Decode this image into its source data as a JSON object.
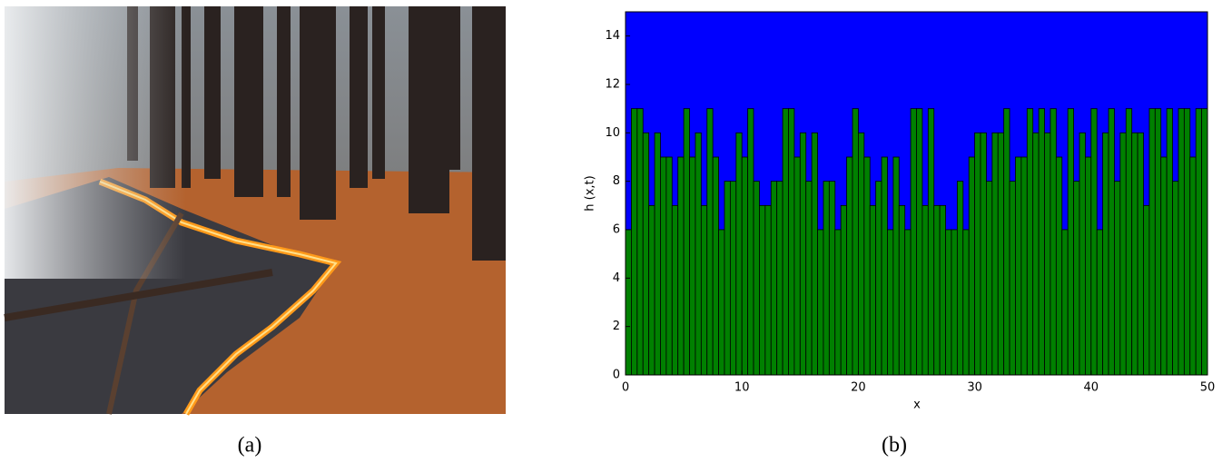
{
  "captions": [
    "(a)",
    "(b)"
  ],
  "chart_data": {
    "type": "histogram",
    "xlabel": "x",
    "ylabel": "h (x,t)",
    "background_color": "#0000ff",
    "color": "#008000",
    "bins": [
      0,
      0.5,
      1,
      1.5,
      2,
      2.5,
      3,
      3.5,
      4,
      4.5,
      5,
      5.5,
      6,
      6.5,
      7,
      7.5,
      8,
      8.5,
      9,
      9.5,
      10,
      10.5,
      11,
      11.5,
      12,
      12.5,
      13,
      13.5,
      14,
      14.5,
      15,
      15.5,
      16,
      16.5,
      17,
      17.5,
      18,
      18.5,
      19,
      19.5,
      20,
      20.5,
      21,
      21.5,
      22,
      22.5,
      23,
      23.5,
      24,
      24.5,
      25,
      25.5,
      26,
      26.5,
      27,
      27.5,
      28,
      28.5,
      29,
      29.5,
      30,
      30.5,
      31,
      31.5,
      32,
      32.5,
      33,
      33.5,
      34,
      34.5,
      35,
      35.5,
      36,
      36.5,
      37,
      37.5,
      38,
      38.5,
      39,
      39.5,
      40,
      40.5,
      41,
      41.5,
      42,
      42.5,
      43,
      43.5,
      44,
      44.5,
      45,
      45.5,
      46,
      46.5,
      47,
      47.5,
      48,
      48.5,
      49,
      49.5,
      50
    ],
    "values": [
      6,
      11,
      11,
      10,
      7,
      10,
      9,
      9,
      7,
      9,
      11,
      9,
      10,
      7,
      11,
      9,
      6,
      8,
      8,
      10,
      9,
      11,
      8,
      7,
      7,
      8,
      8,
      11,
      11,
      9,
      10,
      8,
      10,
      6,
      8,
      8,
      6,
      7,
      9,
      11,
      10,
      9,
      7,
      8,
      9,
      6,
      9,
      7,
      6,
      11,
      11,
      7,
      11,
      7,
      7,
      6,
      6,
      8,
      6,
      9,
      10,
      10,
      8,
      10,
      10,
      11,
      8,
      9,
      9,
      11,
      10,
      11,
      10,
      11,
      9,
      6,
      11,
      8,
      10,
      9,
      11,
      6,
      10,
      11,
      8,
      10,
      11,
      10,
      10,
      7,
      11,
      11,
      9,
      11,
      8,
      11,
      11,
      9,
      11,
      11
    ],
    "xlim": [
      0,
      50
    ],
    "ylim": [
      0,
      15
    ],
    "xticks": [
      0,
      10,
      20,
      30,
      40,
      50
    ],
    "yticks": [
      0,
      2,
      4,
      6,
      8,
      10,
      12,
      14
    ]
  }
}
